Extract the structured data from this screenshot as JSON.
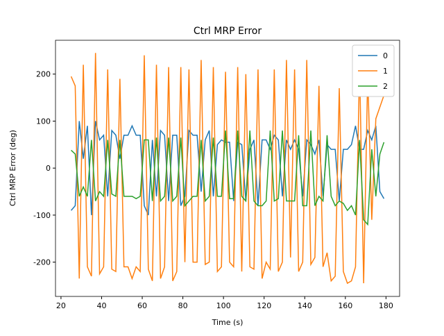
{
  "chart_data": {
    "type": "line",
    "title": "Ctrl MRP Error",
    "xlabel": "Time (s)",
    "ylabel": "Ctrl MRP Error (deg)",
    "x": [
      25,
      27,
      29,
      31,
      33,
      35,
      37,
      39,
      41,
      43,
      45,
      47,
      49,
      51,
      53,
      55,
      57,
      59,
      61,
      63,
      65,
      67,
      69,
      71,
      73,
      75,
      77,
      79,
      81,
      83,
      85,
      87,
      89,
      91,
      93,
      95,
      97,
      99,
      101,
      103,
      105,
      107,
      109,
      111,
      113,
      115,
      117,
      119,
      121,
      123,
      125,
      127,
      129,
      131,
      133,
      135,
      137,
      139,
      141,
      143,
      145,
      147,
      149,
      151,
      153,
      155,
      157,
      159,
      161,
      163,
      165,
      167,
      169,
      171,
      173,
      175,
      177,
      179
    ],
    "series": [
      {
        "name": "0",
        "color": "#1f77b4",
        "values": [
          -90,
          -80,
          100,
          20,
          90,
          -100,
          100,
          60,
          70,
          -60,
          80,
          70,
          20,
          70,
          70,
          90,
          70,
          70,
          -80,
          -100,
          60,
          -60,
          80,
          70,
          -70,
          70,
          70,
          -80,
          -60,
          80,
          70,
          70,
          -50,
          60,
          80,
          -60,
          50,
          60,
          55,
          55,
          -70,
          55,
          50,
          -70,
          40,
          60,
          -80,
          60,
          60,
          40,
          70,
          60,
          -60,
          60,
          40,
          60,
          40,
          -60,
          60,
          50,
          30,
          60,
          -60,
          50,
          40,
          40,
          -70,
          40,
          40,
          50,
          90,
          40,
          40,
          80,
          60,
          90,
          -50,
          -65
        ]
      },
      {
        "name": "1",
        "color": "#ff7f0e",
        "values": [
          195,
          175,
          -235,
          220,
          -210,
          -230,
          245,
          -225,
          -210,
          210,
          -215,
          -220,
          190,
          -210,
          -210,
          -235,
          -210,
          -220,
          240,
          -215,
          -240,
          220,
          -235,
          -210,
          215,
          -240,
          -220,
          215,
          -200,
          210,
          -200,
          -200,
          230,
          -205,
          -200,
          215,
          -220,
          -210,
          205,
          -200,
          -210,
          215,
          -220,
          200,
          -210,
          -215,
          210,
          -235,
          -200,
          -215,
          210,
          -220,
          -200,
          230,
          -190,
          210,
          -220,
          -200,
          230,
          -205,
          -190,
          175,
          -210,
          -180,
          -240,
          -230,
          170,
          -220,
          -245,
          -240,
          -210,
          220,
          -245,
          200,
          -110,
          105,
          130,
          155
        ]
      },
      {
        "name": "2",
        "color": "#2ca02c",
        "values": [
          38,
          30,
          -60,
          -40,
          -60,
          60,
          -70,
          -50,
          -60,
          60,
          -55,
          -60,
          60,
          -60,
          -60,
          -60,
          -65,
          -60,
          60,
          60,
          -70,
          65,
          -70,
          -60,
          65,
          -70,
          -60,
          65,
          -80,
          -70,
          -60,
          -60,
          60,
          -70,
          -60,
          65,
          -60,
          -60,
          80,
          -65,
          -65,
          80,
          -60,
          -70,
          80,
          -70,
          -80,
          -80,
          -70,
          80,
          -70,
          -65,
          80,
          -70,
          -70,
          -70,
          70,
          -80,
          -80,
          80,
          -80,
          -60,
          -70,
          70,
          -60,
          -80,
          -70,
          -75,
          -90,
          -80,
          -100,
          60,
          -110,
          -120,
          40,
          -60,
          30,
          55
        ]
      }
    ],
    "xlim": [
      17.3,
      186.7
    ],
    "xticks": [
      20,
      40,
      60,
      80,
      100,
      120,
      140,
      160,
      180
    ],
    "ylim": [
      -273,
      272
    ],
    "yticks": [
      -200,
      -100,
      0,
      100,
      200
    ],
    "legend": "upper right"
  }
}
